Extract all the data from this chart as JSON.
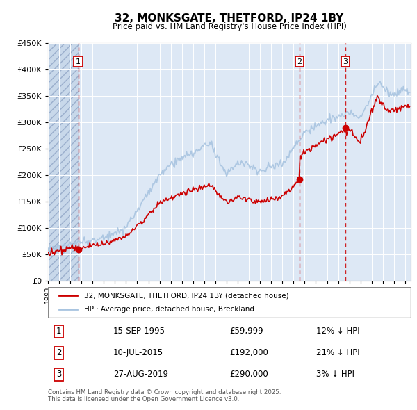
{
  "title": "32, MONKSGATE, THETFORD, IP24 1BY",
  "subtitle": "Price paid vs. HM Land Registry's House Price Index (HPI)",
  "legend_line1": "32, MONKSGATE, THETFORD, IP24 1BY (detached house)",
  "legend_line2": "HPI: Average price, detached house, Breckland",
  "footer": "Contains HM Land Registry data © Crown copyright and database right 2025.\nThis data is licensed under the Open Government Licence v3.0.",
  "transactions": [
    {
      "num": 1,
      "date": "15-SEP-1995",
      "price": "£59,999",
      "hpi": "12% ↓ HPI",
      "year": 1995.71
    },
    {
      "num": 2,
      "date": "10-JUL-2015",
      "price": "£192,000",
      "hpi": "21% ↓ HPI",
      "year": 2015.53
    },
    {
      "num": 3,
      "date": "27-AUG-2019",
      "price": "£290,000",
      "hpi": "3% ↓ HPI",
      "year": 2019.65
    }
  ],
  "sale_prices": [
    59999,
    192000,
    290000
  ],
  "sale_years": [
    1995.71,
    2015.53,
    2019.65
  ],
  "hpi_color": "#a8c4e0",
  "price_color": "#cc0000",
  "dashed_color": "#cc0000",
  "background_plot": "#dde8f5",
  "grid_color": "#ffffff",
  "ylim": [
    0,
    450000
  ],
  "xlim_start": 1993.0,
  "xlim_end": 2025.5
}
